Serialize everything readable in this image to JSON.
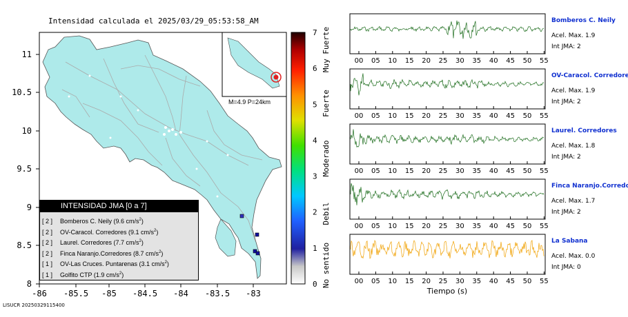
{
  "header": {
    "title": "Intensidad calculada el 2025/03/29_05:53:58_AM",
    "footer": "LISUCR 20250329115400"
  },
  "map": {
    "x_ticks": [
      "-86",
      "-85.5",
      "-85",
      "-84.5",
      "-84",
      "-83.5",
      "-83"
    ],
    "y_ticks": [
      "11",
      "10.5",
      "10",
      "9.5",
      "9",
      "8.5",
      "8"
    ],
    "land_color": "#aeeaea",
    "inset_label": "M=4.9 P=24km"
  },
  "colorbar": {
    "ticks": [
      "0",
      "1",
      "2",
      "3",
      "4",
      "5",
      "6",
      "7"
    ],
    "categories": [
      "No sentido",
      "Debil",
      "Moderado",
      "Fuerte",
      "Muy Fuerte"
    ]
  },
  "legend": {
    "title": "INTENSIDAD JMA [0 a 7]",
    "items": [
      {
        "idx": "[ 2 ]",
        "text": "Bomberos C. Neily (9.6 cm/s",
        "sup": "2",
        "close": ")"
      },
      {
        "idx": "[ 2 ]",
        "text": "OV-Caracol. Corredores (9.1 cm/s",
        "sup": "2",
        "close": ")"
      },
      {
        "idx": "[ 2 ]",
        "text": "Laurel. Corredores (7.7 cm/s",
        "sup": "2",
        "close": ")"
      },
      {
        "idx": "[ 2 ]",
        "text": "Finca Naranjo.Corredores (8.7 cm/s",
        "sup": "2",
        "close": ")"
      },
      {
        "idx": "[ 1 ]",
        "text": "OV-Las Cruces. Puntarenas (3.1 cm/s",
        "sup": "2",
        "close": ")"
      },
      {
        "idx": "[ 1 ]",
        "text": "Golfito CTP (1.9 cm/s",
        "sup": "2",
        "close": ")"
      }
    ]
  },
  "stations": [
    {
      "name": "Bomberos C. Neily",
      "accel": "Acel. Max. 1.9",
      "int": "Int JMA: 2",
      "color": "#1a6b1a"
    },
    {
      "name": "OV-Caracol. Corredores",
      "accel": "Acel. Max. 1.9",
      "int": "Int JMA: 2",
      "color": "#1a6b1a"
    },
    {
      "name": "Laurel. Corredores",
      "accel": "Acel. Max. 1.8",
      "int": "Int JMA: 2",
      "color": "#1a6b1a"
    },
    {
      "name": "Finca Naranjo.Corredores",
      "accel": "Acel. Max. 1.7",
      "int": "Int JMA: 2",
      "color": "#1a6b1a"
    },
    {
      "name": "La Sabana",
      "accel": "Acel. Max. 0.0",
      "int": "Int JMA: 0",
      "color": "#f0a000"
    }
  ],
  "time_ticks": [
    "00",
    "05",
    "10",
    "15",
    "20",
    "25",
    "30",
    "35",
    "40",
    "45",
    "50",
    "55"
  ],
  "time_axis_label": "Tiempo (s)"
}
